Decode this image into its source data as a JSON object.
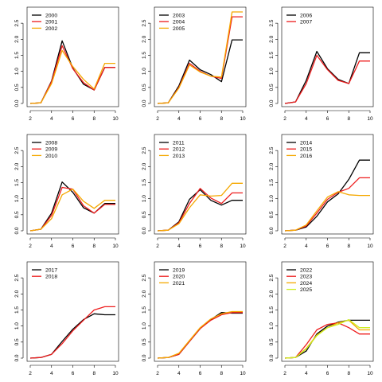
{
  "chart_data": [
    {
      "type": "line",
      "x": [
        2,
        3,
        4,
        5,
        6,
        7,
        8,
        9,
        10
      ],
      "ylim": [
        0,
        2.9
      ],
      "xlim": [
        2,
        10
      ],
      "yticks": [
        "0.0",
        "0.5",
        "1.0",
        "1.5",
        "2.0",
        "2.5"
      ],
      "xticks": [
        "2",
        "4",
        "6",
        "8",
        "10"
      ],
      "legend": "top-left",
      "grid": false,
      "series": [
        {
          "name": "2000",
          "color": "#000000",
          "values": [
            0,
            0.02,
            0.7,
            1.95,
            1.1,
            0.6,
            0.42,
            1.12,
            1.12
          ]
        },
        {
          "name": "2001",
          "color": "#ee1c1c",
          "values": [
            0,
            0.02,
            0.68,
            1.8,
            1.08,
            0.65,
            0.42,
            1.12,
            1.12
          ]
        },
        {
          "name": "2002",
          "color": "#f5a800",
          "values": [
            0,
            0.02,
            0.62,
            1.65,
            1.15,
            0.75,
            0.45,
            1.25,
            1.25
          ]
        }
      ]
    },
    {
      "type": "line",
      "x": [
        2,
        3,
        4,
        5,
        6,
        7,
        8,
        9,
        10
      ],
      "ylim": [
        0,
        2.9
      ],
      "xlim": [
        2,
        10
      ],
      "yticks": [
        "0.0",
        "0.5",
        "1.0",
        "1.5",
        "2.0",
        "2.5"
      ],
      "xticks": [
        "2",
        "4",
        "6",
        "8",
        "10"
      ],
      "legend": "top-left",
      "grid": false,
      "series": [
        {
          "name": "2003",
          "color": "#000000",
          "values": [
            0,
            0.02,
            0.55,
            1.35,
            1.05,
            0.9,
            0.68,
            1.98,
            1.98
          ]
        },
        {
          "name": "2004",
          "color": "#ee1c1c",
          "values": [
            0,
            0.02,
            0.5,
            1.25,
            1.0,
            0.85,
            0.78,
            2.7,
            2.7
          ]
        },
        {
          "name": "2005",
          "color": "#f5a800",
          "values": [
            0,
            0.02,
            0.48,
            1.2,
            0.98,
            0.85,
            0.82,
            2.85,
            2.85
          ]
        }
      ]
    },
    {
      "type": "line",
      "x": [
        2,
        3,
        4,
        5,
        6,
        7,
        8,
        9,
        10
      ],
      "ylim": [
        0,
        2.9
      ],
      "xlim": [
        2,
        10
      ],
      "yticks": [
        "0.0",
        "0.5",
        "1.0",
        "1.5",
        "2.0",
        "2.5"
      ],
      "xticks": [
        "2",
        "4",
        "6",
        "8",
        "10"
      ],
      "legend": "top-left",
      "grid": false,
      "series": [
        {
          "name": "2006",
          "color": "#000000",
          "values": [
            0,
            0.05,
            0.72,
            1.62,
            1.08,
            0.75,
            0.62,
            1.58,
            1.58
          ]
        },
        {
          "name": "2007",
          "color": "#ee1c1c",
          "values": [
            0,
            0.05,
            0.62,
            1.5,
            1.05,
            0.72,
            0.62,
            1.32,
            1.32
          ]
        }
      ]
    },
    {
      "type": "line",
      "x": [
        2,
        3,
        4,
        5,
        6,
        7,
        8,
        9,
        10
      ],
      "ylim": [
        0,
        2.9
      ],
      "xlim": [
        2,
        10
      ],
      "yticks": [
        "0.0",
        "0.5",
        "1.0",
        "1.5",
        "2.0",
        "2.5"
      ],
      "xticks": [
        "2",
        "4",
        "6",
        "8",
        "10"
      ],
      "legend": "top-left",
      "grid": false,
      "series": [
        {
          "name": "2008",
          "color": "#000000",
          "values": [
            0,
            0.05,
            0.55,
            1.52,
            1.2,
            0.72,
            0.55,
            0.85,
            0.85
          ]
        },
        {
          "name": "2009",
          "color": "#ee1c1c",
          "values": [
            0,
            0.05,
            0.48,
            1.35,
            1.3,
            0.78,
            0.55,
            0.82,
            0.82
          ]
        },
        {
          "name": "2010",
          "color": "#f5a800",
          "values": [
            0,
            0.05,
            0.38,
            1.12,
            1.3,
            0.92,
            0.7,
            0.95,
            0.95
          ]
        }
      ]
    },
    {
      "type": "line",
      "x": [
        2,
        3,
        4,
        5,
        6,
        7,
        8,
        9,
        10
      ],
      "ylim": [
        0,
        2.9
      ],
      "xlim": [
        2,
        10
      ],
      "yticks": [
        "0.0",
        "0.5",
        "1.0",
        "1.5",
        "2.0",
        "2.5"
      ],
      "xticks": [
        "2",
        "4",
        "6",
        "8",
        "10"
      ],
      "legend": "top-left",
      "grid": false,
      "series": [
        {
          "name": "2011",
          "color": "#000000",
          "values": [
            0,
            0.02,
            0.28,
            0.98,
            1.28,
            0.95,
            0.8,
            0.95,
            0.95
          ]
        },
        {
          "name": "2012",
          "color": "#ee1c1c",
          "values": [
            0,
            0.02,
            0.25,
            0.85,
            1.32,
            1.02,
            0.85,
            1.18,
            1.18
          ]
        },
        {
          "name": "2013",
          "color": "#f5a800",
          "values": [
            0,
            0.02,
            0.22,
            0.72,
            1.12,
            1.08,
            1.1,
            1.48,
            1.48
          ]
        }
      ]
    },
    {
      "type": "line",
      "x": [
        2,
        3,
        4,
        5,
        6,
        7,
        8,
        9,
        10
      ],
      "ylim": [
        0,
        2.9
      ],
      "xlim": [
        2,
        10
      ],
      "yticks": [
        "0.0",
        "0.5",
        "1.0",
        "1.5",
        "2.0",
        "2.5"
      ],
      "xticks": [
        "2",
        "4",
        "6",
        "8",
        "10"
      ],
      "legend": "top-left",
      "grid": false,
      "series": [
        {
          "name": "2014",
          "color": "#000000",
          "values": [
            0,
            0.02,
            0.12,
            0.45,
            0.9,
            1.15,
            1.6,
            2.2,
            2.2
          ]
        },
        {
          "name": "2015",
          "color": "#ee1c1c",
          "values": [
            0,
            0.02,
            0.15,
            0.55,
            0.98,
            1.2,
            1.32,
            1.65,
            1.65
          ]
        },
        {
          "name": "2016",
          "color": "#f5a800",
          "values": [
            0,
            0.02,
            0.18,
            0.62,
            1.05,
            1.22,
            1.12,
            1.1,
            1.1
          ]
        }
      ]
    },
    {
      "type": "line",
      "x": [
        2,
        3,
        4,
        5,
        6,
        7,
        8,
        9,
        10
      ],
      "ylim": [
        0,
        2.9
      ],
      "xlim": [
        2,
        10
      ],
      "yticks": [
        "0.0",
        "0.5",
        "1.0",
        "1.5",
        "2.0",
        "2.5"
      ],
      "xticks": [
        "2",
        "4",
        "6",
        "8",
        "10"
      ],
      "legend": "top-left",
      "grid": false,
      "series": [
        {
          "name": "2017",
          "color": "#000000",
          "values": [
            0,
            0.02,
            0.12,
            0.52,
            0.9,
            1.2,
            1.38,
            1.35,
            1.35
          ]
        },
        {
          "name": "2018",
          "color": "#ee1c1c",
          "values": [
            0,
            0.02,
            0.12,
            0.45,
            0.85,
            1.18,
            1.5,
            1.6,
            1.6
          ]
        }
      ]
    },
    {
      "type": "line",
      "x": [
        2,
        3,
        4,
        5,
        6,
        7,
        8,
        9,
        10
      ],
      "ylim": [
        0,
        2.9
      ],
      "xlim": [
        2,
        10
      ],
      "yticks": [
        "0.0",
        "0.5",
        "1.0",
        "1.5",
        "2.0",
        "2.5"
      ],
      "xticks": [
        "2",
        "4",
        "6",
        "8",
        "10"
      ],
      "legend": "top-left",
      "grid": false,
      "series": [
        {
          "name": "2019",
          "color": "#000000",
          "values": [
            0,
            0.02,
            0.12,
            0.52,
            0.92,
            1.2,
            1.42,
            1.4,
            1.4
          ]
        },
        {
          "name": "2020",
          "color": "#ee1c1c",
          "values": [
            0,
            0.02,
            0.12,
            0.52,
            0.92,
            1.18,
            1.35,
            1.42,
            1.42
          ]
        },
        {
          "name": "2021",
          "color": "#f5a800",
          "values": [
            0,
            0.02,
            0.15,
            0.55,
            0.95,
            1.22,
            1.38,
            1.45,
            1.45
          ]
        }
      ]
    },
    {
      "type": "line",
      "x": [
        2,
        3,
        4,
        5,
        6,
        7,
        8,
        9,
        10
      ],
      "ylim": [
        0,
        2.9
      ],
      "xlim": [
        2,
        10
      ],
      "yticks": [
        "0.0",
        "0.5",
        "1.0",
        "1.5",
        "2.0",
        "2.5"
      ],
      "xticks": [
        "2",
        "4",
        "6",
        "8",
        "10"
      ],
      "legend": "top-left",
      "grid": false,
      "series": [
        {
          "name": "2022",
          "color": "#000000",
          "values": [
            0,
            0.02,
            0.22,
            0.75,
            1.0,
            1.12,
            1.18,
            1.18,
            1.18
          ]
        },
        {
          "name": "2023",
          "color": "#ee1c1c",
          "values": [
            0,
            0.02,
            0.42,
            0.88,
            1.05,
            1.1,
            0.95,
            0.75,
            0.75
          ]
        },
        {
          "name": "2024",
          "color": "#f5a800",
          "values": [
            0,
            0.02,
            0.3,
            0.72,
            0.95,
            1.1,
            1.18,
            0.88,
            0.88
          ]
        },
        {
          "name": "2025",
          "color": "#ccee22",
          "values": [
            0,
            0.02,
            0.28,
            0.7,
            0.95,
            1.05,
            1.2,
            0.95,
            0.95
          ]
        }
      ]
    }
  ]
}
